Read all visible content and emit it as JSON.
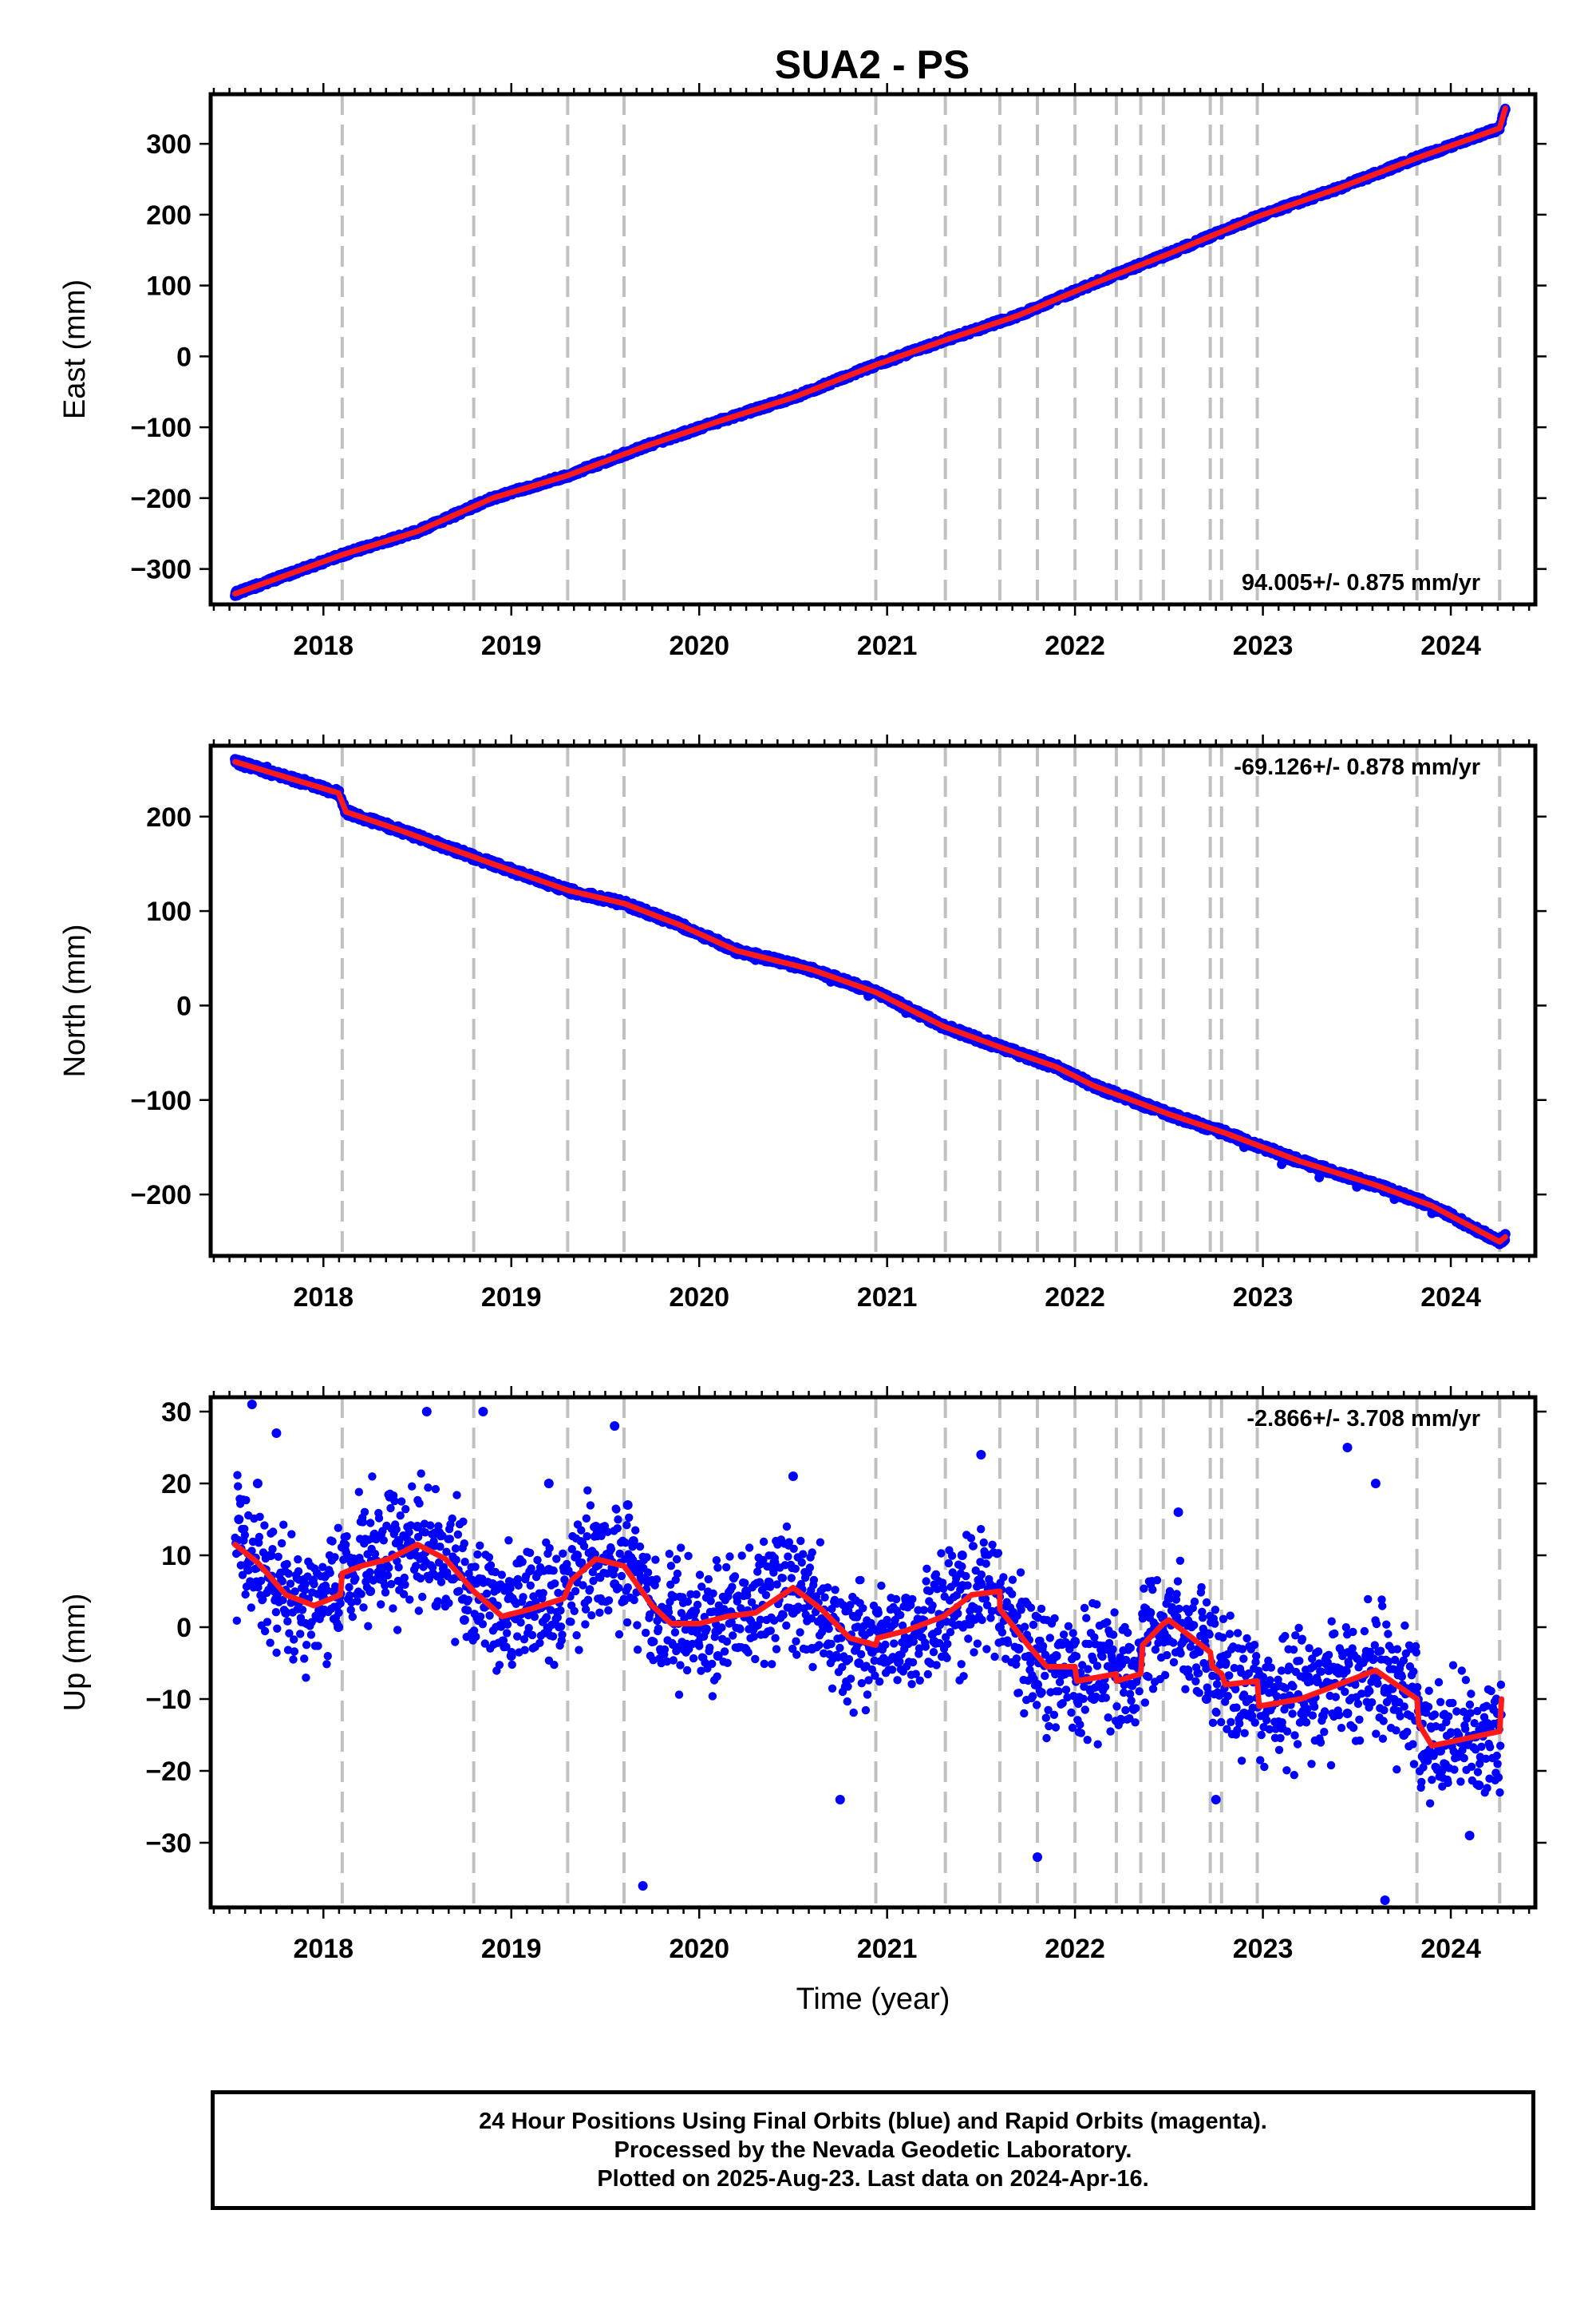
{
  "title": "SUA2 - PS",
  "footer": {
    "line1": "24 Hour Positions Using Final Orbits (blue) and Rapid Orbits (magenta).",
    "line2": "Processed by the Nevada Geodetic Laboratory.",
    "line3": "Plotted on 2025-Aug-23. Last data on 2024-Apr-16."
  },
  "colors": {
    "data_points": "#0000ff",
    "fit_line": "#ff1a1a",
    "event_lines": "#c0c0c0"
  },
  "chart_data": [
    {
      "type": "scatter",
      "panel": "east",
      "ylabel": "East (mm)",
      "xlabel": "",
      "rate_label": "94.005+/- 0.875 mm/yr",
      "xlim": [
        2017.4,
        2024.45
      ],
      "ylim": [
        -350,
        370
      ],
      "x_ticks": [
        2018,
        2019,
        2020,
        2021,
        2022,
        2023,
        2024
      ],
      "y_ticks": [
        -300,
        -200,
        -100,
        0,
        100,
        200,
        300
      ],
      "event_lines": [
        2018.1,
        2018.8,
        2019.3,
        2019.6,
        2020.94,
        2021.31,
        2021.6,
        2021.8,
        2022.0,
        2022.22,
        2022.35,
        2022.47,
        2022.72,
        2022.78,
        2022.97,
        2023.82,
        2024.26
      ],
      "series": [
        {
          "style": "points",
          "x": [
            2017.53,
            2017.7,
            2017.9,
            2018.1,
            2018.3,
            2018.5,
            2018.7,
            2018.9,
            2019.1,
            2019.3,
            2019.5,
            2019.7,
            2019.9,
            2020.1,
            2020.3,
            2020.5,
            2020.7,
            2020.9,
            2021.1,
            2021.3,
            2021.5,
            2021.7,
            2021.9,
            2022.1,
            2022.3,
            2022.5,
            2022.7,
            2022.9,
            2023.1,
            2023.3,
            2023.5,
            2023.7,
            2023.9,
            2024.1,
            2024.25,
            2024.29
          ],
          "y": [
            -335,
            -322,
            -300,
            -280,
            -264,
            -247,
            -228,
            -200,
            -182,
            -168,
            -152,
            -128,
            -107,
            -92,
            -75,
            -58,
            -38,
            -15,
            5,
            22,
            40,
            58,
            80,
            103,
            123,
            145,
            164,
            190,
            210,
            228,
            245,
            265,
            285,
            305,
            322,
            350
          ]
        },
        {
          "style": "fit",
          "x": [
            2017.53,
            2018.1,
            2018.5,
            2018.9,
            2019.3,
            2019.7,
            2020.1,
            2020.5,
            2020.94,
            2021.3,
            2021.7,
            2022.1,
            2022.5,
            2022.97,
            2023.4,
            2023.82,
            2024.26,
            2024.29
          ],
          "y": [
            -335,
            -280,
            -247,
            -200,
            -168,
            -128,
            -92,
            -58,
            -12,
            22,
            58,
            103,
            145,
            197,
            237,
            280,
            322,
            350
          ]
        }
      ]
    },
    {
      "type": "scatter",
      "panel": "north",
      "ylabel": "North (mm)",
      "xlabel": "",
      "rate_label": "-69.126+/- 0.878 mm/yr",
      "xlim": [
        2017.4,
        2024.45
      ],
      "ylim": [
        -265,
        275
      ],
      "x_ticks": [
        2018,
        2019,
        2020,
        2021,
        2022,
        2023,
        2024
      ],
      "y_ticks": [
        -200,
        -100,
        0,
        100,
        200
      ],
      "event_lines": [
        2018.1,
        2018.8,
        2019.3,
        2019.6,
        2020.94,
        2021.31,
        2021.6,
        2021.8,
        2022.0,
        2022.22,
        2022.35,
        2022.47,
        2022.72,
        2022.78,
        2022.97,
        2023.82,
        2024.26
      ],
      "series": [
        {
          "style": "points",
          "x": [
            2017.53,
            2017.7,
            2017.9,
            2018.05,
            2018.12,
            2018.3,
            2018.5,
            2018.7,
            2018.9,
            2019.1,
            2019.3,
            2019.5,
            2019.7,
            2019.9,
            2020.1,
            2020.3,
            2020.5,
            2020.7,
            2020.9,
            2021.1,
            2021.3,
            2021.5,
            2021.7,
            2021.9,
            2022.1,
            2022.3,
            2022.5,
            2022.7,
            2022.9,
            2023.1,
            2023.3,
            2023.5,
            2023.7,
            2023.9,
            2024.1,
            2024.26,
            2024.29
          ],
          "y": [
            258,
            253,
            240,
            228,
            205,
            190,
            182,
            168,
            152,
            140,
            122,
            112,
            100,
            85,
            70,
            48,
            40,
            25,
            10,
            -8,
            -22,
            -37,
            -50,
            -65,
            -85,
            -102,
            -115,
            -130,
            -150,
            -168,
            -182,
            -192,
            -205,
            -220,
            -235,
            -250,
            -242
          ]
        },
        {
          "style": "fit",
          "x": [
            2017.53,
            2018.08,
            2018.12,
            2018.4,
            2018.9,
            2019.3,
            2019.6,
            2019.9,
            2020.2,
            2020.6,
            2020.94,
            2021.3,
            2021.6,
            2021.9,
            2022.1,
            2022.5,
            2022.8,
            2023.2,
            2023.6,
            2023.9,
            2024.26,
            2024.29
          ],
          "y": [
            258,
            225,
            205,
            186,
            150,
            122,
            108,
            85,
            58,
            38,
            14,
            -22,
            -44,
            -65,
            -85,
            -115,
            -135,
            -165,
            -190,
            -212,
            -250,
            -245
          ]
        }
      ]
    },
    {
      "type": "scatter",
      "panel": "up",
      "ylabel": "Up (mm)",
      "xlabel": "Time (year)",
      "rate_label": "-2.866+/- 3.708 mm/yr",
      "xlim": [
        2017.4,
        2024.45
      ],
      "ylim": [
        -39,
        32
      ],
      "x_ticks": [
        2018,
        2019,
        2020,
        2021,
        2022,
        2023,
        2024
      ],
      "y_ticks": [
        -30,
        -20,
        -10,
        0,
        10,
        20,
        30
      ],
      "event_lines": [
        2018.1,
        2018.8,
        2019.3,
        2019.6,
        2020.94,
        2021.31,
        2021.6,
        2021.8,
        2022.0,
        2022.22,
        2022.35,
        2022.47,
        2022.72,
        2022.78,
        2022.97,
        2023.82,
        2024.26
      ],
      "series": [
        {
          "style": "points",
          "x": [
            2017.55,
            2017.6,
            2017.65,
            2017.72,
            2017.8,
            2017.9,
            2018.0,
            2018.08,
            2018.15,
            2018.25,
            2018.4,
            2018.5,
            2018.6,
            2018.75,
            2018.9,
            2019.0,
            2019.1,
            2019.2,
            2019.35,
            2019.45,
            2019.55,
            2019.65,
            2019.75,
            2019.85,
            2020.0,
            2020.1,
            2020.25,
            2020.4,
            2020.5,
            2020.6,
            2020.75,
            2020.85,
            2020.95,
            2021.1,
            2021.25,
            2021.4,
            2021.5,
            2021.6,
            2021.7,
            2021.8,
            2021.9,
            2022.0,
            2022.1,
            2022.2,
            2022.3,
            2022.4,
            2022.5,
            2022.6,
            2022.7,
            2022.8,
            2022.9,
            2023.0,
            2023.1,
            2023.2,
            2023.35,
            2023.45,
            2023.55,
            2023.65,
            2023.75,
            2023.85,
            2023.95,
            2024.05,
            2024.15,
            2024.25,
            2017.62,
            2017.75,
            2018.55,
            2018.85,
            2019.2,
            2019.55,
            2019.62,
            2019.7,
            2020.5,
            2020.75,
            2021.5,
            2021.8,
            2022.55,
            2022.75,
            2023.45,
            2023.6,
            2023.65,
            2024.1
          ],
          "y": [
            15,
            8,
            20,
            10,
            2,
            6,
            4,
            0,
            9,
            5,
            12,
            14,
            3,
            1,
            6,
            -4,
            3,
            8,
            10,
            14,
            6,
            12,
            -2,
            1,
            0,
            -4,
            5,
            9,
            2,
            -3,
            0,
            -5,
            2,
            4,
            -2,
            10,
            6,
            0,
            -3,
            -8,
            -4,
            -2,
            -10,
            -6,
            -8,
            2,
            4,
            -6,
            -10,
            -5,
            -12,
            -8,
            -14,
            -10,
            -6,
            -12,
            -4,
            -9,
            -15,
            -18,
            -20,
            -16,
            -22,
            -12,
            31,
            27,
            30,
            30,
            20,
            28,
            17,
            -36,
            21,
            -24,
            24,
            -32,
            16,
            -24,
            25,
            20,
            -38,
            -29
          ]
        },
        {
          "style": "fit",
          "x": [
            2017.53,
            2017.65,
            2017.8,
            2017.95,
            2018.09,
            2018.1,
            2018.2,
            2018.35,
            2018.5,
            2018.65,
            2018.8,
            2018.95,
            2019.1,
            2019.28,
            2019.32,
            2019.45,
            2019.6,
            2019.75,
            2019.85,
            2020.0,
            2020.15,
            2020.3,
            2020.5,
            2020.65,
            2020.8,
            2020.94,
            2020.95,
            2021.1,
            2021.3,
            2021.45,
            2021.6,
            2021.6,
            2021.75,
            2021.85,
            2022.0,
            2022.01,
            2022.22,
            2022.22,
            2022.35,
            2022.36,
            2022.47,
            2022.5,
            2022.6,
            2022.72,
            2022.73,
            2022.78,
            2022.8,
            2022.97,
            2022.98,
            2023.2,
            2023.45,
            2023.6,
            2023.82,
            2023.83,
            2023.9,
            2024.26,
            2024.27
          ],
          "y": [
            11.5,
            9,
            4.5,
            3,
            4.5,
            7.5,
            8.5,
            9.5,
            11.5,
            9.5,
            5,
            1.5,
            2.5,
            4,
            6.5,
            9.5,
            8.5,
            3,
            0.5,
            0.5,
            1.5,
            2,
            5.5,
            2.5,
            -1.5,
            -2.5,
            -1.5,
            -0.5,
            1.5,
            4.5,
            5,
            2.5,
            -2.5,
            -5.5,
            -5.5,
            -7.5,
            -6.5,
            -7.5,
            -6.5,
            -2.5,
            0.5,
            1,
            -1,
            -3.5,
            -5.5,
            -6.5,
            -8,
            -7.5,
            -11,
            -10,
            -7.5,
            -6,
            -10,
            -13.5,
            -16.5,
            -14.5,
            -10
          ]
        }
      ]
    }
  ]
}
